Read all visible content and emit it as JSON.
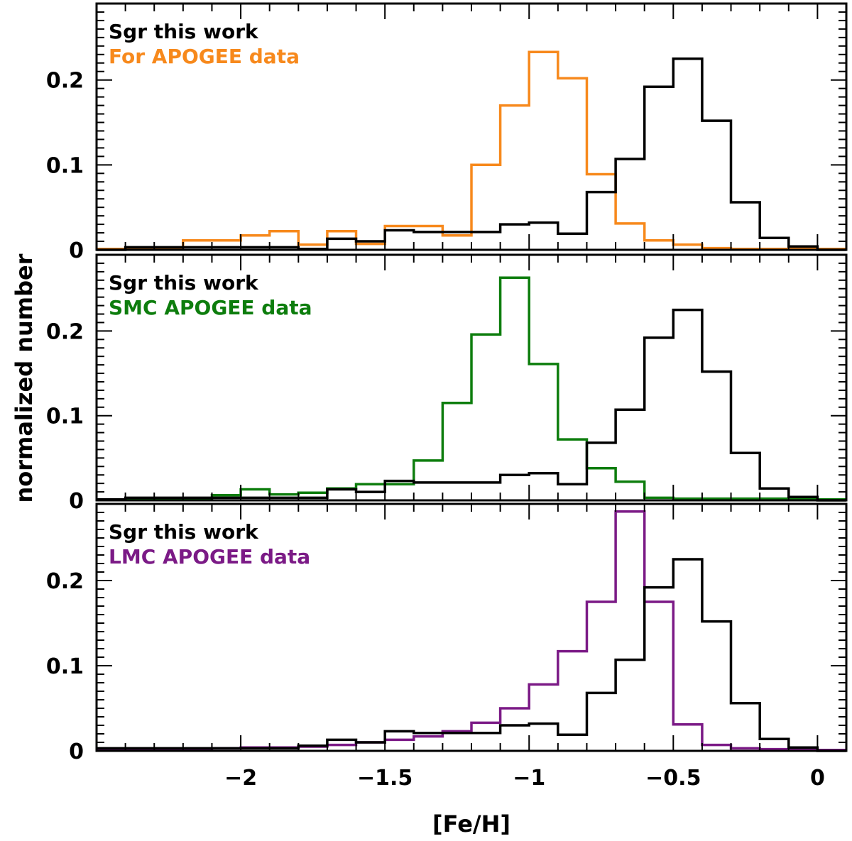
{
  "chart_data": {
    "type": "histogram-step",
    "xlabel": "[Fe/H]",
    "ylabel": "normalized number",
    "xlim": [
      -2.5,
      0.1
    ],
    "ylim": [
      0,
      0.29
    ],
    "x_ticks": [
      {
        "value": -2,
        "label": "−2"
      },
      {
        "value": -1.5,
        "label": "−1.5"
      },
      {
        "value": -1,
        "label": "−1"
      },
      {
        "value": -0.5,
        "label": "−0.5"
      },
      {
        "value": 0,
        "label": "0"
      }
    ],
    "y_ticks": [
      {
        "value": 0,
        "label": "0"
      },
      {
        "value": 0.1,
        "label": "0.1"
      },
      {
        "value": 0.2,
        "label": "0.2"
      }
    ],
    "bin_edges": [
      -2.5,
      -2.4,
      -2.3,
      -2.2,
      -2.1,
      -2.0,
      -1.9,
      -1.8,
      -1.7,
      -1.6,
      -1.5,
      -1.4,
      -1.3,
      -1.2,
      -1.1,
      -1.0,
      -0.9,
      -0.8,
      -0.7,
      -0.6,
      -0.5,
      -0.4,
      -0.3,
      -0.2,
      -0.1,
      0.0,
      0.1
    ],
    "panels": [
      {
        "series": [
          {
            "name": "Sgr this work",
            "color": "#000000",
            "values": [
              0.0,
              0.003,
              0.003,
              0.003,
              0.003,
              0.003,
              0.003,
              0.001,
              0.013,
              0.01,
              0.023,
              0.021,
              0.021,
              0.021,
              0.03,
              0.032,
              0.019,
              0.068,
              0.107,
              0.192,
              0.225,
              0.152,
              0.056,
              0.014,
              0.004,
              0.0
            ]
          },
          {
            "name": "For APOGEE data",
            "color": "#f7891c",
            "values": [
              0.001,
              0.001,
              0.001,
              0.011,
              0.011,
              0.017,
              0.022,
              0.006,
              0.022,
              0.007,
              0.028,
              0.028,
              0.017,
              0.1,
              0.17,
              0.233,
              0.202,
              0.089,
              0.031,
              0.011,
              0.006,
              0.002,
              0.001,
              0.001,
              0.001,
              0.001
            ]
          }
        ]
      },
      {
        "series": [
          {
            "name": "Sgr this work",
            "color": "#000000",
            "values": [
              0.001,
              0.003,
              0.003,
              0.003,
              0.003,
              0.003,
              0.003,
              0.003,
              0.013,
              0.01,
              0.023,
              0.021,
              0.021,
              0.021,
              0.03,
              0.032,
              0.019,
              0.068,
              0.107,
              0.192,
              0.225,
              0.152,
              0.056,
              0.014,
              0.004,
              0.0
            ]
          },
          {
            "name": "SMC APOGEE data",
            "color": "#0d7d0d",
            "values": [
              0.001,
              0.001,
              0.002,
              0.002,
              0.006,
              0.013,
              0.007,
              0.009,
              0.014,
              0.019,
              0.019,
              0.047,
              0.115,
              0.196,
              0.263,
              0.161,
              0.072,
              0.038,
              0.022,
              0.003,
              0.002,
              0.002,
              0.002,
              0.002,
              0.001,
              0.001
            ]
          }
        ]
      },
      {
        "series": [
          {
            "name": "Sgr this work",
            "color": "#000000",
            "values": [
              0.003,
              0.003,
              0.003,
              0.003,
              0.003,
              0.003,
              0.003,
              0.006,
              0.013,
              0.01,
              0.023,
              0.021,
              0.021,
              0.021,
              0.03,
              0.032,
              0.019,
              0.068,
              0.107,
              0.192,
              0.225,
              0.152,
              0.056,
              0.014,
              0.004,
              0.0
            ]
          },
          {
            "name": "LMC APOGEE data",
            "color": "#7b1a86",
            "values": [
              0.001,
              0.002,
              0.002,
              0.002,
              0.003,
              0.004,
              0.004,
              0.005,
              0.007,
              0.01,
              0.013,
              0.017,
              0.023,
              0.033,
              0.05,
              0.078,
              0.117,
              0.175,
              0.281,
              0.175,
              0.031,
              0.007,
              0.003,
              0.002,
              0.001,
              0.001
            ]
          }
        ]
      }
    ]
  }
}
